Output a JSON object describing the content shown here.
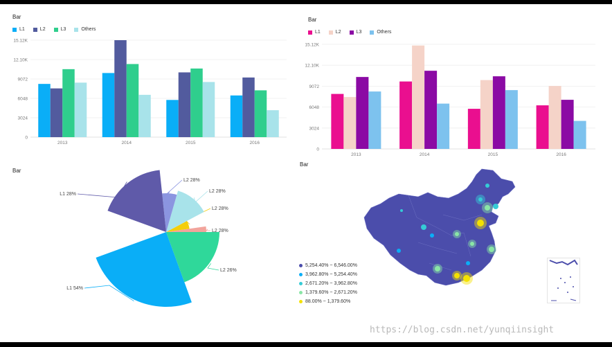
{
  "charts": {
    "bar1": {
      "title": "Bar",
      "legend": [
        {
          "name": "L1",
          "color": "#0aaef7"
        },
        {
          "name": "L2",
          "color": "#525b9e"
        },
        {
          "name": "L3",
          "color": "#2fce8d"
        },
        {
          "name": "Others",
          "color": "#a8e3ea"
        }
      ]
    },
    "bar2": {
      "title": "Bar",
      "legend": [
        {
          "name": "L1",
          "color": "#ea0f8f"
        },
        {
          "name": "L2",
          "color": "#f5d3c8"
        },
        {
          "name": "L3",
          "color": "#8b0aa4"
        },
        {
          "name": "Others",
          "color": "#7dc2ee"
        }
      ]
    },
    "pie": {
      "title": "Bar"
    },
    "map": {
      "title": "Bar",
      "legend": [
        {
          "label": "5,254.40% ~ 6,546.00%",
          "color": "#4b4dab"
        },
        {
          "label": "3,962.80% ~ 5,254.40%",
          "color": "#0aaef7"
        },
        {
          "label": "2,671.20% ~ 3,962.80%",
          "color": "#35cbd6"
        },
        {
          "label": "1,379.60% ~ 2,671.20%",
          "color": "#8ae6a6"
        },
        {
          "label": "88.00% ~ 1,379.60%",
          "color": "#f4e100"
        }
      ]
    }
  },
  "chart_data": [
    {
      "type": "bar",
      "title": "Bar",
      "categories": [
        "2013",
        "2014",
        "2015",
        "2016"
      ],
      "series": [
        {
          "name": "L1",
          "values": [
            8300,
            10000,
            5800,
            6500
          ]
        },
        {
          "name": "L2",
          "values": [
            7600,
            15120,
            10100,
            9300
          ]
        },
        {
          "name": "L3",
          "values": [
            10600,
            11400,
            10700,
            7300
          ]
        },
        {
          "name": "Others",
          "values": [
            8500,
            6600,
            8600,
            4200
          ]
        }
      ],
      "yticks": [
        "0",
        "3024",
        "6048",
        "9072",
        "12.10K",
        "15.12K"
      ],
      "ylim": [
        0,
        15120
      ]
    },
    {
      "type": "bar",
      "title": "Bar",
      "categories": [
        "2013",
        "2014",
        "2015",
        "2016"
      ],
      "series": [
        {
          "name": "L1",
          "values": [
            7950,
            9750,
            5800,
            6300
          ]
        },
        {
          "name": "L2",
          "values": [
            7500,
            14950,
            9950,
            9100
          ]
        },
        {
          "name": "L3",
          "values": [
            10400,
            11300,
            10500,
            7100
          ]
        },
        {
          "name": "Others",
          "values": [
            8300,
            6550,
            8500,
            4050
          ]
        }
      ],
      "yticks": [
        "0",
        "3024",
        "6048",
        "9072",
        "12.10K",
        "15.12K"
      ],
      "ylim": [
        0,
        15120
      ]
    },
    {
      "type": "pie",
      "title": "Bar",
      "slices": [
        {
          "label": "L1 54%",
          "value": 54,
          "color": "#0aaef7"
        },
        {
          "label": "L2 26%",
          "value": 26,
          "color": "#2fd89a"
        },
        {
          "label": "L2 28%",
          "value": 28,
          "color": "#f2a49c"
        },
        {
          "label": "L2 28%",
          "value": 28,
          "color": "#f4ce0c"
        },
        {
          "label": "L2 28%",
          "value": 28,
          "color": "#a8e3ea"
        },
        {
          "label": "L2 28%",
          "value": 28,
          "color": "#8b95e0"
        },
        {
          "label": "L1 28%",
          "value": 28,
          "color": "#5f5aa9"
        }
      ]
    }
  ],
  "watermark": "https://blog.csdn.net/yunqiinsight"
}
